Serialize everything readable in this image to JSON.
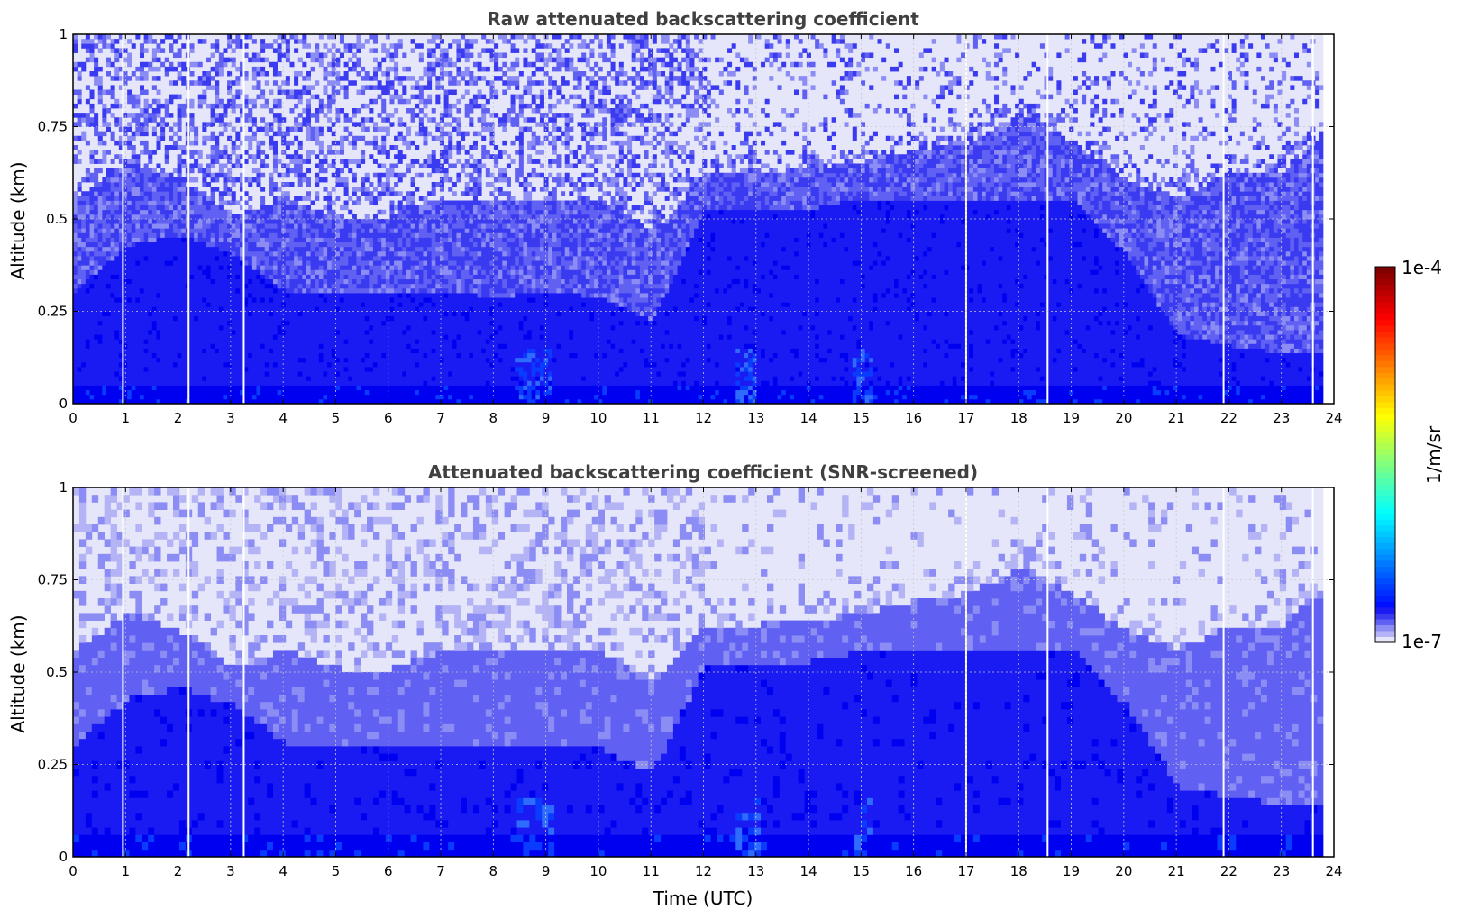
{
  "chart_data": [
    {
      "type": "heatmap",
      "title": "Raw attenuated backscattering coefficient",
      "xlabel": "",
      "ylabel": "Altitude (km)",
      "xlim": [
        0,
        24
      ],
      "ylim": [
        0,
        1
      ],
      "x_ticks": [
        "0",
        "1",
        "2",
        "3",
        "4",
        "5",
        "6",
        "7",
        "8",
        "9",
        "10",
        "11",
        "12",
        "13",
        "14",
        "15",
        "16",
        "17",
        "18",
        "19",
        "20",
        "21",
        "22",
        "23",
        "24"
      ],
      "y_ticks": [
        "0",
        "0.25",
        "0.5",
        "0.75",
        "1"
      ],
      "grid": true,
      "screening": "raw",
      "times": [
        0,
        1,
        2,
        3,
        4,
        5,
        6,
        7,
        8,
        9,
        10,
        11,
        12,
        13,
        14,
        15,
        16,
        17,
        18,
        19,
        20,
        21,
        22,
        23,
        23.8
      ],
      "layer_top_km": [
        0.3,
        0.42,
        0.45,
        0.4,
        0.3,
        0.3,
        0.3,
        0.3,
        0.28,
        0.3,
        0.28,
        0.22,
        0.52,
        0.52,
        0.52,
        0.55,
        0.55,
        0.55,
        0.55,
        0.55,
        0.4,
        0.18,
        0.15,
        0.13,
        0.13
      ],
      "mixing_top_km": [
        0.55,
        0.65,
        0.6,
        0.5,
        0.55,
        0.5,
        0.5,
        0.55,
        0.55,
        0.55,
        0.55,
        0.45,
        0.62,
        0.62,
        0.63,
        0.65,
        0.68,
        0.7,
        0.78,
        0.7,
        0.6,
        0.55,
        0.62,
        0.62,
        0.72
      ],
      "data_gaps_utc": [
        0.95,
        2.2,
        3.25,
        17.0,
        18.55,
        21.9,
        23.6
      ]
    },
    {
      "type": "heatmap",
      "title": "Attenuated backscattering coefficient (SNR-screened)",
      "xlabel": "Time (UTC)",
      "ylabel": "Altitude (km)",
      "xlim": [
        0,
        24
      ],
      "ylim": [
        0,
        1
      ],
      "x_ticks": [
        "0",
        "1",
        "2",
        "3",
        "4",
        "5",
        "6",
        "7",
        "8",
        "9",
        "10",
        "11",
        "12",
        "13",
        "14",
        "15",
        "16",
        "17",
        "18",
        "19",
        "20",
        "21",
        "22",
        "23",
        "24"
      ],
      "y_ticks": [
        "0",
        "0.25",
        "0.5",
        "0.75",
        "1"
      ],
      "grid": true,
      "screening": "snr",
      "times": [
        0,
        1,
        2,
        3,
        4,
        5,
        6,
        7,
        8,
        9,
        10,
        11,
        12,
        13,
        14,
        15,
        16,
        17,
        18,
        19,
        20,
        21,
        22,
        23,
        23.8
      ],
      "layer_top_km": [
        0.3,
        0.42,
        0.45,
        0.4,
        0.3,
        0.3,
        0.3,
        0.3,
        0.28,
        0.3,
        0.28,
        0.22,
        0.52,
        0.52,
        0.52,
        0.55,
        0.55,
        0.55,
        0.55,
        0.55,
        0.4,
        0.18,
        0.15,
        0.13,
        0.13
      ],
      "mixing_top_km": [
        0.55,
        0.65,
        0.6,
        0.5,
        0.55,
        0.5,
        0.5,
        0.55,
        0.55,
        0.55,
        0.55,
        0.45,
        0.62,
        0.62,
        0.63,
        0.65,
        0.68,
        0.7,
        0.78,
        0.7,
        0.6,
        0.55,
        0.62,
        0.62,
        0.72
      ],
      "data_gaps_utc": [
        0.95,
        2.2,
        3.25,
        17.0,
        18.55,
        21.9,
        23.6
      ]
    }
  ],
  "colorbar": {
    "min_label": "1e-7",
    "max_label": "1e-4",
    "unit_label": "1/m/sr",
    "colormap": "jet",
    "scale": "log"
  }
}
